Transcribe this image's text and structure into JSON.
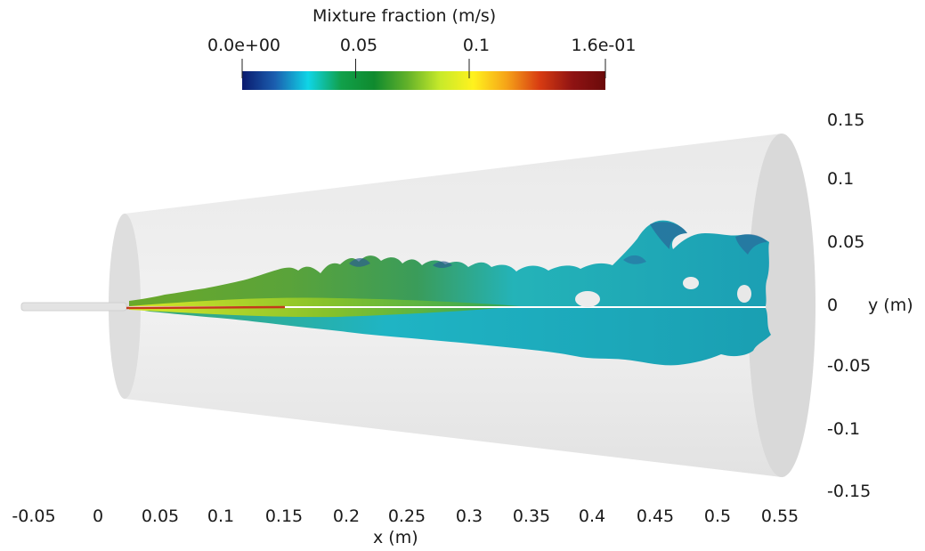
{
  "colorbar": {
    "title": "Mixture fraction (m/s)",
    "tick_labels": [
      "0.0e+00",
      "0.05",
      "0.1",
      "1.6e-01"
    ],
    "range": [
      0.0,
      0.16
    ],
    "colormap": [
      "#0a1a6e",
      "#1b5fb0",
      "#0fd5e6",
      "#11a04a",
      "#0f8a2e",
      "#62b12a",
      "#c8ea2a",
      "#fff21e",
      "#f6a418",
      "#d83c12",
      "#8f1313",
      "#6a0a0a"
    ]
  },
  "x_axis": {
    "label": "x (m)",
    "tick_labels": [
      "-0.05",
      "0",
      "0.05",
      "0.1",
      "0.15",
      "0.2",
      "0.25",
      "0.3",
      "0.35",
      "0.4",
      "0.45",
      "0.5",
      "0.55"
    ]
  },
  "y_axis": {
    "label": "y (m)",
    "tick_labels": [
      "0.15",
      "0.1",
      "0.05",
      "0",
      "-0.05",
      "-0.1",
      "-0.15"
    ]
  },
  "colors": {
    "domain_fill": "#e6e6e6",
    "domain_end": "#d6d6d6",
    "background": "#ffffff"
  }
}
